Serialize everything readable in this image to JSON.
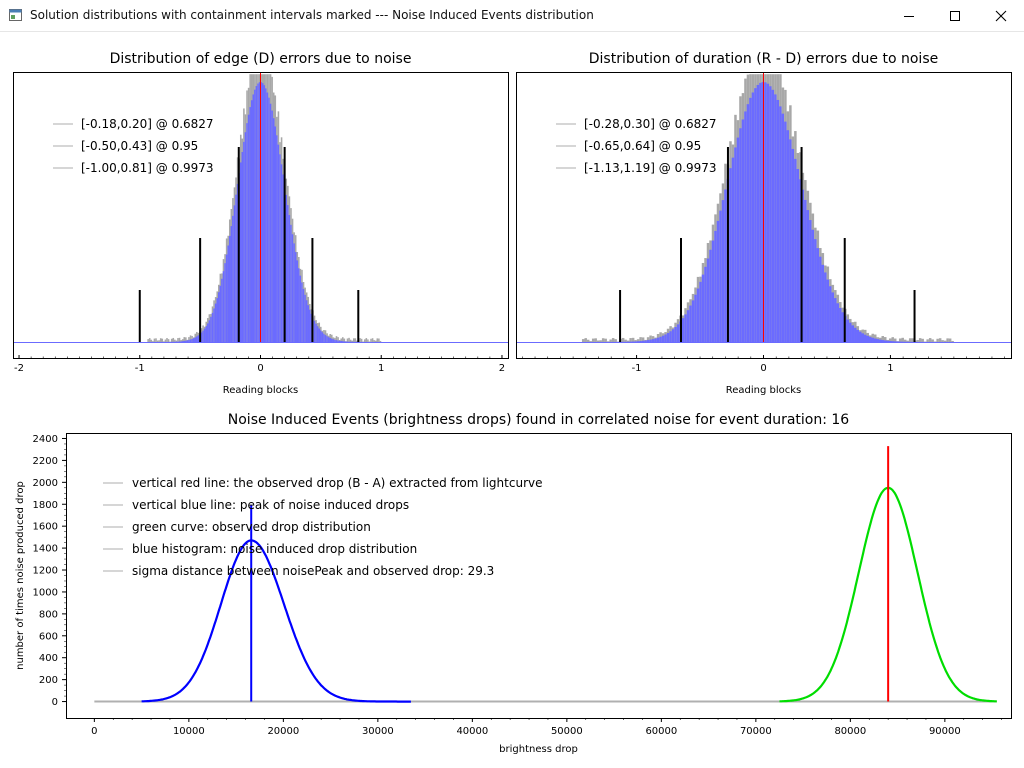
{
  "window": {
    "title": "Solution distributions with containment intervals marked --- Noise Induced Events distribution",
    "icon": "chart-window-icon",
    "controls": [
      "minimize-icon",
      "maximize-icon",
      "close-icon"
    ]
  },
  "colors": {
    "histogram": "#6b6bff",
    "envelope": "#a8a8a8",
    "observed": "#ff0000",
    "noise_peak": "#0000ff",
    "green_curve": "#00dd00",
    "interval_bar": "#000000"
  },
  "chart_data": [
    {
      "type": "bar",
      "title": "Distribution of edge (D) errors due to noise",
      "xlabel": "Reading blocks",
      "ylabel": "",
      "xlim": [
        -2.05,
        2.05
      ],
      "xticks": [
        -2,
        -1,
        0,
        1,
        2
      ],
      "distribution": {
        "mean": 0.0,
        "sigma": 0.19,
        "right_sigma": 0.2,
        "peak": 1.0
      },
      "observed_line_x": 0,
      "intervals": [
        {
          "label": "[-0.18,0.20] @ 0.6827",
          "low": -0.18,
          "high": 0.2,
          "level": 0.6827,
          "bar_height": 0.75
        },
        {
          "label": "[-0.50,0.43] @ 0.95",
          "low": -0.5,
          "high": 0.43,
          "level": 0.95,
          "bar_height": 0.4
        },
        {
          "label": "[-1.00,0.81] @ 0.9973",
          "low": -1.0,
          "high": 0.81,
          "level": 0.9973,
          "bar_height": 0.2
        }
      ],
      "legend_position": "top-left"
    },
    {
      "type": "bar",
      "title": "Distribution of duration (R - D) errors due to noise",
      "xlabel": "Reading blocks",
      "ylabel": "",
      "xlim": [
        -1.95,
        1.95
      ],
      "xticks": [
        -1,
        0,
        1
      ],
      "distribution": {
        "mean": 0.0,
        "sigma": 0.29,
        "right_sigma": 0.3,
        "peak": 1.0
      },
      "observed_line_x": 0,
      "intervals": [
        {
          "label": "[-0.28,0.30] @ 0.6827",
          "low": -0.28,
          "high": 0.3,
          "level": 0.6827,
          "bar_height": 0.75
        },
        {
          "label": "[-0.65,0.64] @ 0.95",
          "low": -0.65,
          "high": 0.64,
          "level": 0.95,
          "bar_height": 0.4
        },
        {
          "label": "[-1.13,1.19] @ 0.9973",
          "low": -1.13,
          "high": 1.19,
          "level": 0.9973,
          "bar_height": 0.2
        }
      ],
      "legend_position": "top-left"
    },
    {
      "type": "line",
      "title": "Noise Induced Events (brightness drops) found in correlated noise for event duration: 16",
      "xlabel": "brightness drop",
      "ylabel": "number of times noise produced drop",
      "xlim": [
        -3000,
        97000
      ],
      "ylim": [
        -150,
        2450
      ],
      "xticks": [
        0,
        10000,
        20000,
        30000,
        40000,
        50000,
        60000,
        70000,
        80000,
        90000
      ],
      "yticks": [
        0,
        200,
        400,
        600,
        800,
        1000,
        1200,
        1400,
        1600,
        1800,
        2000,
        2200,
        2400
      ],
      "noise_histogram": {
        "mean": 16600,
        "sigma": 3200,
        "peak": 1470,
        "range": [
          5000,
          33500
        ]
      },
      "green_curve": {
        "mean": 84000,
        "sigma": 3100,
        "peak": 1950,
        "range": [
          72500,
          95500
        ]
      },
      "baseline": [
        0,
        95500
      ],
      "noise_peak_line": {
        "x": 16600,
        "top": 1790
      },
      "observed_line": {
        "x": 84000,
        "top": 2330
      },
      "legend": [
        "vertical red line: the observed drop (B - A) extracted from lightcurve",
        "vertical blue line: peak of noise induced drops",
        "green curve: observed drop distribution",
        "blue histogram: noise induced drop distribution",
        "sigma distance between noisePeak and observed drop: 29.3"
      ],
      "legend_position": "top-left"
    }
  ]
}
